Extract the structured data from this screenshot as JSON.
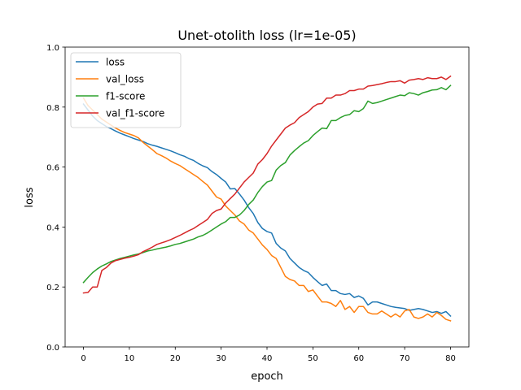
{
  "chart_data": {
    "type": "line",
    "title": "Unet-otolith loss (lr=1e-05)",
    "xlabel": "epoch",
    "ylabel": "loss",
    "xlim": [
      -4,
      84
    ],
    "ylim": [
      0.0,
      1.0
    ],
    "xticks": [
      0,
      10,
      20,
      30,
      40,
      50,
      60,
      70,
      80
    ],
    "yticks": [
      0.0,
      0.2,
      0.4,
      0.6,
      0.8,
      1.0
    ],
    "xtick_labels": [
      "0",
      "10",
      "20",
      "30",
      "40",
      "50",
      "60",
      "70",
      "80"
    ],
    "ytick_labels": [
      "0.0",
      "0.2",
      "0.4",
      "0.6",
      "0.8",
      "1.0"
    ],
    "grid": false,
    "legend_position": "top-left",
    "series": [
      {
        "name": "loss",
        "color": "#1f77b4",
        "values": [
          0.81,
          0.79,
          0.77,
          0.755,
          0.745,
          0.735,
          0.728,
          0.72,
          0.713,
          0.707,
          0.701,
          0.695,
          0.69,
          0.685,
          0.678,
          0.673,
          0.669,
          0.664,
          0.659,
          0.654,
          0.648,
          0.641,
          0.636,
          0.628,
          0.622,
          0.612,
          0.604,
          0.598,
          0.585,
          0.575,
          0.562,
          0.55,
          0.527,
          0.528,
          0.51,
          0.49,
          0.465,
          0.445,
          0.415,
          0.395,
          0.385,
          0.38,
          0.345,
          0.33,
          0.32,
          0.295,
          0.28,
          0.265,
          0.255,
          0.248,
          0.232,
          0.218,
          0.205,
          0.21,
          0.188,
          0.188,
          0.178,
          0.175,
          0.178,
          0.165,
          0.17,
          0.162,
          0.14,
          0.15,
          0.15,
          0.145,
          0.14,
          0.135,
          0.132,
          0.13,
          0.128,
          0.122,
          0.125,
          0.128,
          0.125,
          0.12,
          0.115,
          0.118,
          0.112,
          0.118,
          0.103
        ]
      },
      {
        "name": "val_loss",
        "color": "#ff7f0e",
        "values": [
          0.83,
          0.805,
          0.79,
          0.775,
          0.76,
          0.75,
          0.74,
          0.73,
          0.722,
          0.715,
          0.71,
          0.705,
          0.697,
          0.682,
          0.67,
          0.658,
          0.645,
          0.638,
          0.63,
          0.62,
          0.612,
          0.605,
          0.595,
          0.585,
          0.575,
          0.565,
          0.552,
          0.54,
          0.52,
          0.5,
          0.493,
          0.47,
          0.455,
          0.44,
          0.42,
          0.41,
          0.39,
          0.38,
          0.36,
          0.34,
          0.325,
          0.305,
          0.295,
          0.265,
          0.235,
          0.225,
          0.22,
          0.205,
          0.205,
          0.185,
          0.19,
          0.17,
          0.15,
          0.15,
          0.145,
          0.135,
          0.155,
          0.125,
          0.135,
          0.115,
          0.135,
          0.135,
          0.115,
          0.11,
          0.11,
          0.12,
          0.11,
          0.1,
          0.11,
          0.1,
          0.12,
          0.125,
          0.1,
          0.095,
          0.1,
          0.11,
          0.1,
          0.115,
          0.105,
          0.092,
          0.087
        ]
      },
      {
        "name": "f1-score",
        "color": "#2ca02c",
        "values": [
          0.215,
          0.232,
          0.248,
          0.26,
          0.27,
          0.277,
          0.285,
          0.29,
          0.295,
          0.299,
          0.303,
          0.307,
          0.31,
          0.315,
          0.32,
          0.323,
          0.327,
          0.33,
          0.333,
          0.337,
          0.342,
          0.345,
          0.35,
          0.355,
          0.36,
          0.367,
          0.372,
          0.38,
          0.39,
          0.4,
          0.41,
          0.418,
          0.432,
          0.432,
          0.44,
          0.455,
          0.475,
          0.49,
          0.515,
          0.535,
          0.55,
          0.555,
          0.59,
          0.605,
          0.615,
          0.64,
          0.655,
          0.668,
          0.68,
          0.688,
          0.705,
          0.718,
          0.73,
          0.728,
          0.755,
          0.755,
          0.765,
          0.772,
          0.775,
          0.788,
          0.785,
          0.795,
          0.82,
          0.812,
          0.815,
          0.82,
          0.825,
          0.83,
          0.835,
          0.84,
          0.838,
          0.848,
          0.845,
          0.84,
          0.848,
          0.852,
          0.857,
          0.858,
          0.865,
          0.858,
          0.872
        ]
      },
      {
        "name": "val_f1-score",
        "color": "#d62728",
        "values": [
          0.18,
          0.182,
          0.2,
          0.2,
          0.255,
          0.265,
          0.28,
          0.288,
          0.292,
          0.296,
          0.299,
          0.303,
          0.308,
          0.318,
          0.325,
          0.333,
          0.342,
          0.347,
          0.352,
          0.358,
          0.365,
          0.372,
          0.38,
          0.388,
          0.395,
          0.405,
          0.415,
          0.425,
          0.445,
          0.455,
          0.46,
          0.48,
          0.495,
          0.51,
          0.53,
          0.55,
          0.565,
          0.58,
          0.61,
          0.625,
          0.645,
          0.67,
          0.69,
          0.71,
          0.73,
          0.74,
          0.748,
          0.765,
          0.775,
          0.785,
          0.8,
          0.81,
          0.812,
          0.83,
          0.83,
          0.84,
          0.84,
          0.845,
          0.855,
          0.855,
          0.86,
          0.86,
          0.87,
          0.872,
          0.875,
          0.878,
          0.882,
          0.885,
          0.885,
          0.888,
          0.88,
          0.89,
          0.892,
          0.895,
          0.892,
          0.898,
          0.895,
          0.895,
          0.9,
          0.892,
          0.903
        ]
      }
    ]
  }
}
